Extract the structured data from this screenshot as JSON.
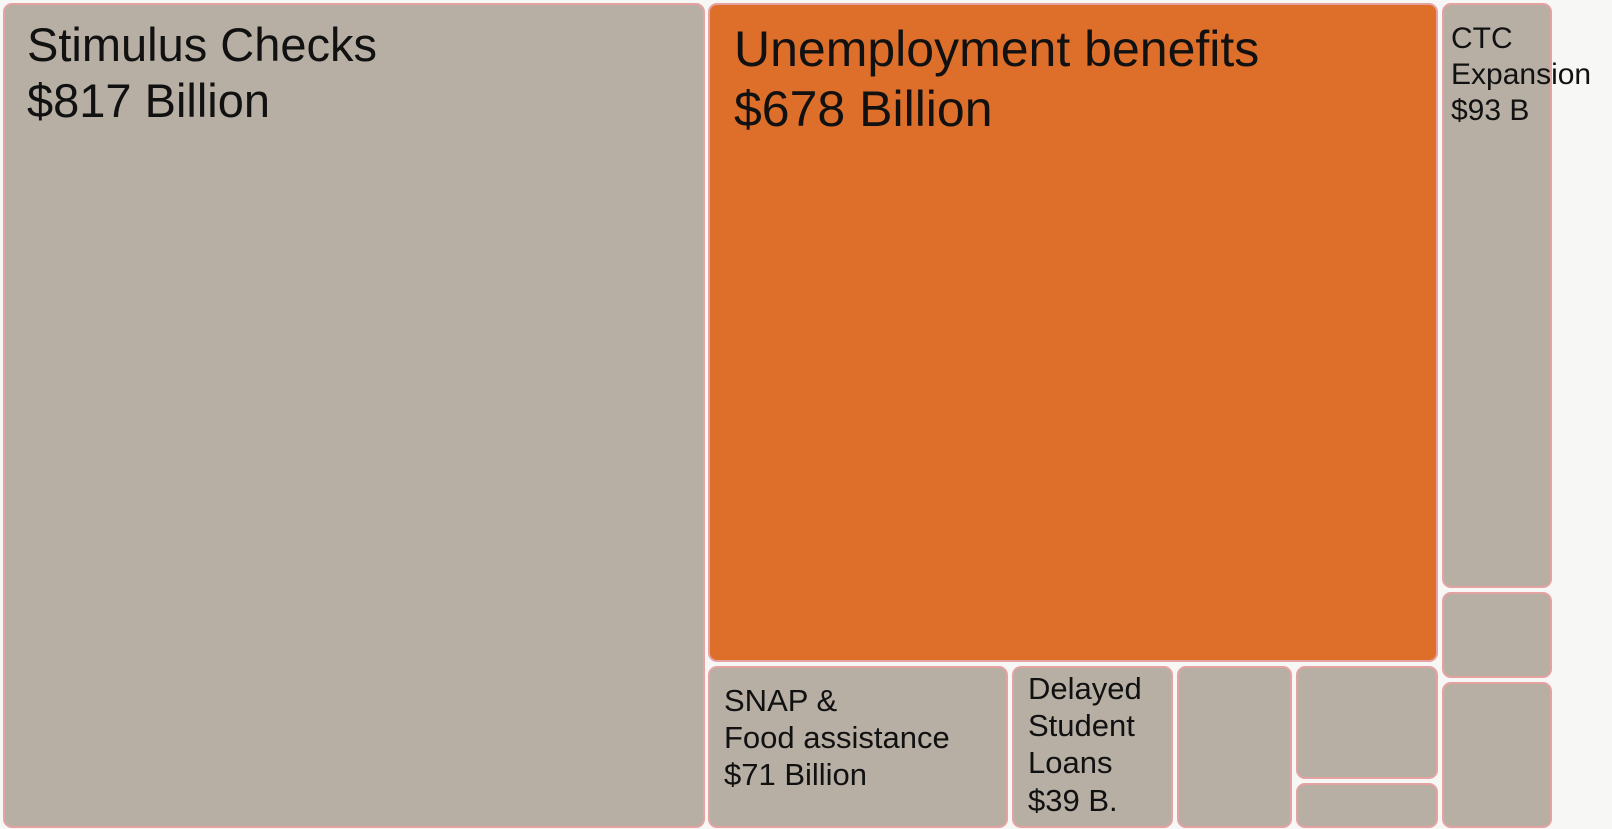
{
  "chart_data": {
    "type": "treemap",
    "colors": {
      "default": "#b7aea4",
      "highlight": "#dd6f2b",
      "border": "#e5a2a2"
    },
    "items": [
      {
        "id": "stimulus",
        "label": "Stimulus Checks\n$817 Billion",
        "value": 817,
        "highlight": false
      },
      {
        "id": "unemployment",
        "label": "Unemployment benefits\n$678 Billion",
        "value": 678,
        "highlight": true
      },
      {
        "id": "ctc",
        "label": "CTC\nExpansion\n$93 B",
        "value": 93,
        "highlight": false
      },
      {
        "id": "snap",
        "label": "SNAP &\nFood assistance\n$71 Billion",
        "value": 71,
        "highlight": false
      },
      {
        "id": "student-loans",
        "label": "Delayed\nStudent\nLoans\n$39 B.",
        "value": 39,
        "highlight": false
      },
      {
        "id": "other-a",
        "label": "",
        "value": null,
        "highlight": false
      },
      {
        "id": "other-b",
        "label": "",
        "value": null,
        "highlight": false
      },
      {
        "id": "other-c",
        "label": "",
        "value": null,
        "highlight": false
      },
      {
        "id": "other-d",
        "label": "",
        "value": null,
        "highlight": false
      },
      {
        "id": "other-e",
        "label": "",
        "value": null,
        "highlight": false
      }
    ]
  }
}
